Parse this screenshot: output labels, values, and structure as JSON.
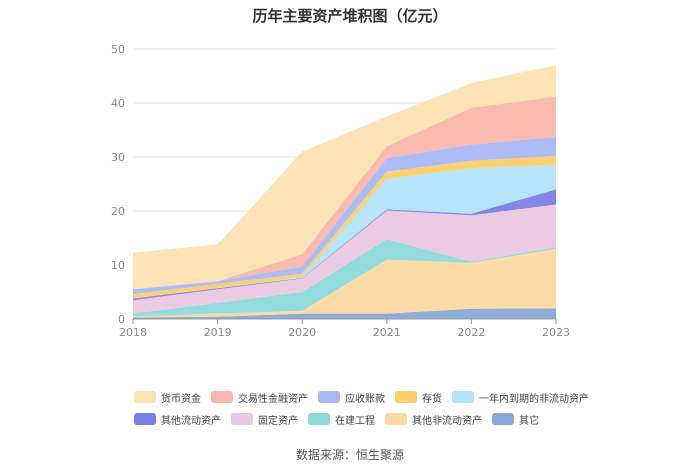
{
  "chart_data": {
    "type": "area",
    "stacked": true,
    "title": "历年主要资产堆积图（亿元）",
    "x": [
      "2018",
      "2019",
      "2020",
      "2021",
      "2022",
      "2023"
    ],
    "ylim": [
      0,
      50
    ],
    "yticks": [
      0,
      10,
      20,
      30,
      40,
      50
    ],
    "grid": true,
    "legend_position": "bottom",
    "series": [
      {
        "name": "其它",
        "color": "#8aa9d8",
        "values": [
          0.3,
          0.4,
          1.0,
          1.0,
          1.9,
          2.0
        ]
      },
      {
        "name": "其他非流动资产",
        "color": "#fcd9a2",
        "values": [
          0.2,
          0.6,
          0.5,
          10.0,
          8.5,
          11.0
        ]
      },
      {
        "name": "在建工程",
        "color": "#8dd9da",
        "values": [
          0.5,
          2.0,
          3.5,
          3.8,
          0.2,
          0.3
        ]
      },
      {
        "name": "固定资产",
        "color": "#eac8e3",
        "values": [
          2.5,
          2.5,
          2.5,
          5.3,
          8.6,
          7.9
        ]
      },
      {
        "name": "其他流动资产",
        "color": "#7c7fe6",
        "values": [
          0.3,
          0.2,
          0.1,
          0.2,
          0.3,
          2.8
        ]
      },
      {
        "name": "一年内到期的非流动资产",
        "color": "#b3e3fb",
        "values": [
          0.0,
          0.0,
          0.2,
          5.7,
          8.4,
          4.6
        ]
      },
      {
        "name": "存货",
        "color": "#fbcf6a",
        "values": [
          0.8,
          0.8,
          0.6,
          1.3,
          1.4,
          1.6
        ]
      },
      {
        "name": "应收账款",
        "color": "#a9b8f5",
        "values": [
          0.9,
          0.5,
          1.3,
          2.5,
          3.0,
          3.5
        ]
      },
      {
        "name": "交易性金融资产",
        "color": "#fbb6ac",
        "values": [
          0.0,
          0.0,
          2.3,
          2.2,
          6.8,
          7.5
        ]
      },
      {
        "name": "货币资金",
        "color": "#fde2b1",
        "values": [
          6.8,
          6.8,
          19.0,
          5.5,
          4.6,
          5.8
        ]
      }
    ]
  },
  "legend": {
    "row1": [
      {
        "name": "货币资金",
        "color": "#fde2b1"
      },
      {
        "name": "交易性金融资产",
        "color": "#fbb6ac"
      },
      {
        "name": "应收账款",
        "color": "#a9b8f5"
      },
      {
        "name": "存货",
        "color": "#fbcf6a"
      },
      {
        "name": "一年内到期的非流动资产",
        "color": "#b3e3fb"
      }
    ],
    "row2": [
      {
        "name": "其他流动资产",
        "color": "#7c7fe6"
      },
      {
        "name": "固定资产",
        "color": "#eac8e3"
      },
      {
        "name": "在建工程",
        "color": "#8dd9da"
      },
      {
        "name": "其他非流动资产",
        "color": "#fcd9a2"
      },
      {
        "name": "其它",
        "color": "#8aa9d8"
      }
    ]
  },
  "footer": {
    "source": "数据来源：恒生聚源"
  }
}
